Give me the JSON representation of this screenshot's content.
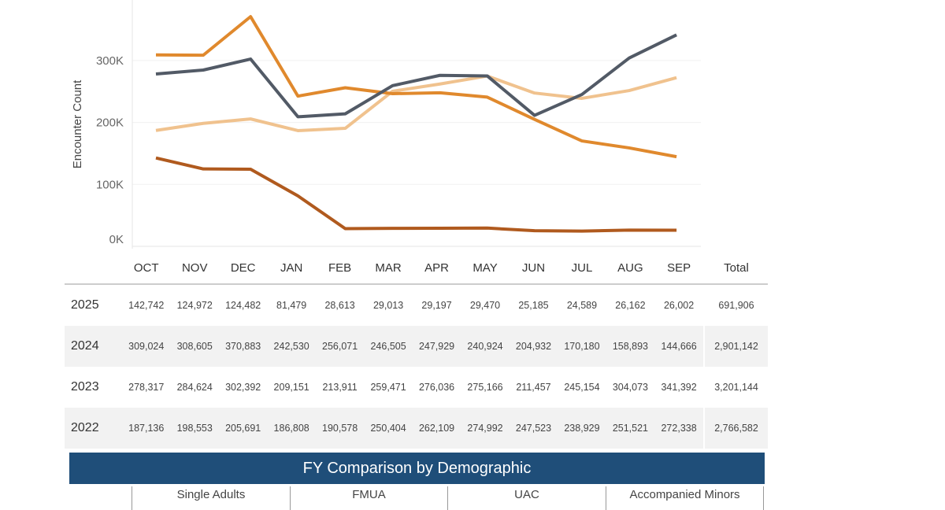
{
  "chart_data": {
    "type": "line",
    "ylabel": "Encounter Count",
    "xlabel": "",
    "categories": [
      "OCT",
      "NOV",
      "DEC",
      "JAN",
      "FEB",
      "MAR",
      "APR",
      "MAY",
      "JUN",
      "JUL",
      "AUG",
      "SEP"
    ],
    "yticks": [
      "0K",
      "100K",
      "200K",
      "300K"
    ],
    "ylim": [
      0,
      390000
    ],
    "grid": true,
    "series": [
      {
        "name": "2025",
        "color": "#b05a1e",
        "values": [
          142742,
          124972,
          124482,
          81479,
          28613,
          29013,
          29197,
          29470,
          25185,
          24589,
          26162,
          26002
        ],
        "total": "691,906"
      },
      {
        "name": "2024",
        "color": "#e0892d",
        "values": [
          309024,
          308605,
          370883,
          242530,
          256071,
          246505,
          247929,
          240924,
          204932,
          170180,
          158893,
          144666
        ],
        "total": "2,901,142"
      },
      {
        "name": "2023",
        "color": "#525a66",
        "values": [
          278317,
          284624,
          302392,
          209151,
          213911,
          259471,
          276036,
          275166,
          211457,
          245154,
          304073,
          341392
        ],
        "total": "3,201,144"
      },
      {
        "name": "2022",
        "color": "#f0c28e",
        "values": [
          187136,
          198553,
          205691,
          186808,
          190578,
          250404,
          262109,
          274992,
          247523,
          238929,
          251521,
          272338
        ],
        "total": "2,766,582"
      }
    ]
  },
  "table": {
    "total_header": "Total",
    "rows": [
      {
        "year": "2025",
        "cells": [
          "142,742",
          "124,972",
          "124,482",
          "81,479",
          "28,613",
          "29,013",
          "29,197",
          "29,470",
          "25,185",
          "24,589",
          "26,162",
          "26,002"
        ],
        "total": "691,906"
      },
      {
        "year": "2024",
        "cells": [
          "309,024",
          "308,605",
          "370,883",
          "242,530",
          "256,071",
          "246,505",
          "247,929",
          "240,924",
          "204,932",
          "170,180",
          "158,893",
          "144,666"
        ],
        "total": "2,901,142"
      },
      {
        "year": "2023",
        "cells": [
          "278,317",
          "284,624",
          "302,392",
          "209,151",
          "213,911",
          "259,471",
          "276,036",
          "275,166",
          "211,457",
          "245,154",
          "304,073",
          "341,392"
        ],
        "total": "3,201,144"
      },
      {
        "year": "2022",
        "cells": [
          "187,136",
          "198,553",
          "205,691",
          "186,808",
          "190,578",
          "250,404",
          "262,109",
          "274,992",
          "247,523",
          "238,929",
          "251,521",
          "272,338"
        ],
        "total": "2,766,582"
      }
    ]
  },
  "demographic": {
    "title": "FY Comparison by Demographic",
    "columns": [
      "Single Adults",
      "FMUA",
      "UAC",
      "Accompanied Minors"
    ]
  }
}
